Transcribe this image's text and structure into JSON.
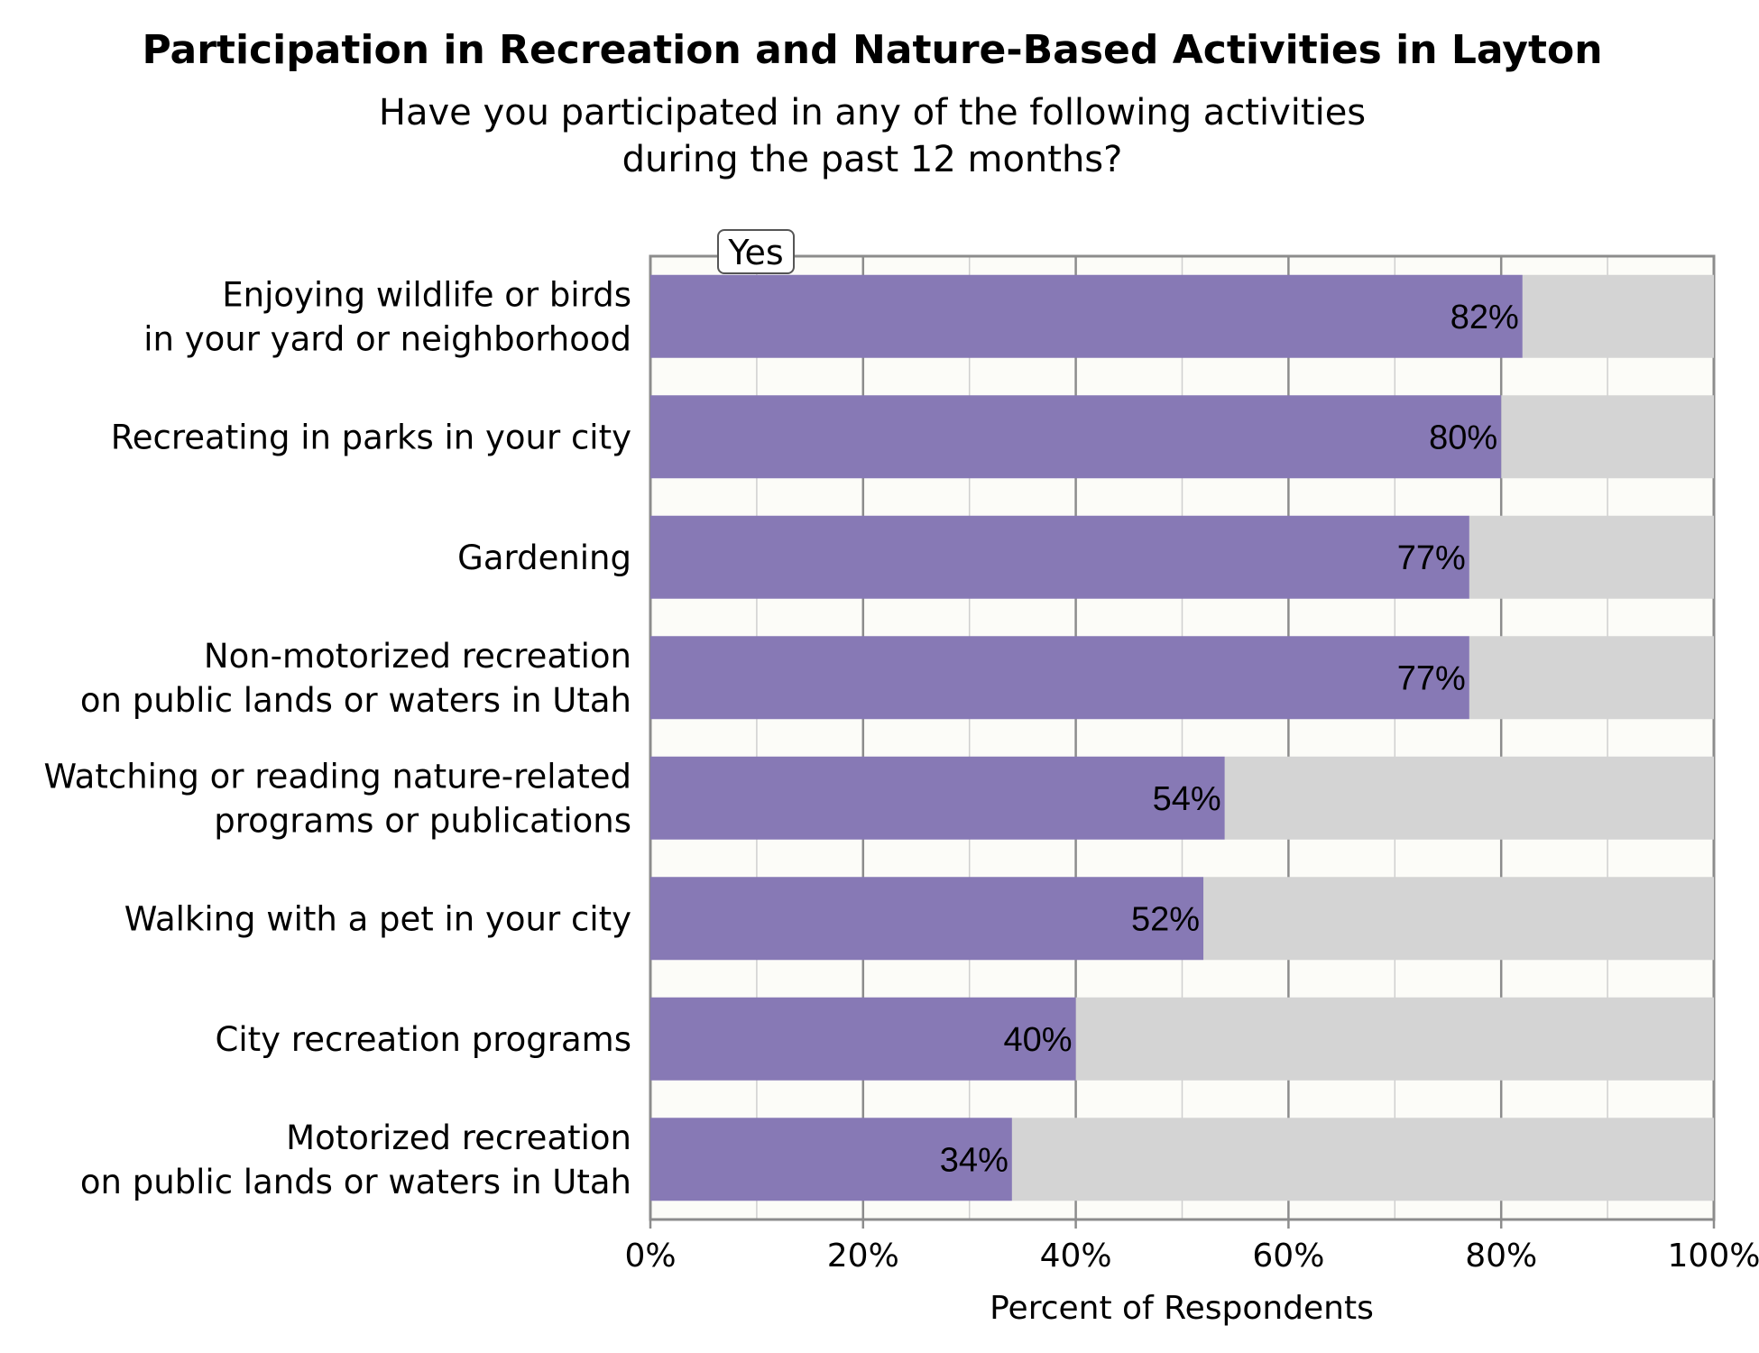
{
  "chart_data": {
    "type": "bar",
    "orientation": "horizontal",
    "stacked_to": 100,
    "title": "Participation in Recreation and Nature-Based Activities in Layton",
    "subtitle_lines": [
      "Have you participated in any of the following activities",
      "during the past 12 months?"
    ],
    "xlabel": "Percent of Respondents",
    "xlim": [
      0,
      100
    ],
    "xticks": [
      "0%",
      "20%",
      "40%",
      "60%",
      "80%",
      "100%"
    ],
    "grid": true,
    "legend": {
      "placement": "top-left",
      "entries": [
        "Yes"
      ]
    },
    "categories": [
      [
        "Enjoying wildlife or birds",
        "in your yard or neighborhood"
      ],
      [
        "Recreating in parks in your city"
      ],
      [
        "Gardening"
      ],
      [
        "Non-motorized recreation",
        "on public lands or waters in Utah"
      ],
      [
        "Watching or reading nature-related",
        "programs or publications"
      ],
      [
        "Walking with a pet in your city"
      ],
      [
        "City recreation programs"
      ],
      [
        "Motorized recreation",
        "on public lands or waters in Utah"
      ]
    ],
    "series": [
      {
        "name": "Yes",
        "values": [
          82,
          80,
          77,
          77,
          54,
          52,
          40,
          34
        ],
        "labels": [
          "82%",
          "80%",
          "77%",
          "77%",
          "54%",
          "52%",
          "40%",
          "34%"
        ]
      }
    ],
    "colors": {
      "yes": "#8779b5",
      "remainder": "#d4d4d4",
      "plot_bg": "#fcfcf8",
      "grid_major": "#8c8c8c",
      "grid_minor": "#cfcfcf"
    }
  }
}
